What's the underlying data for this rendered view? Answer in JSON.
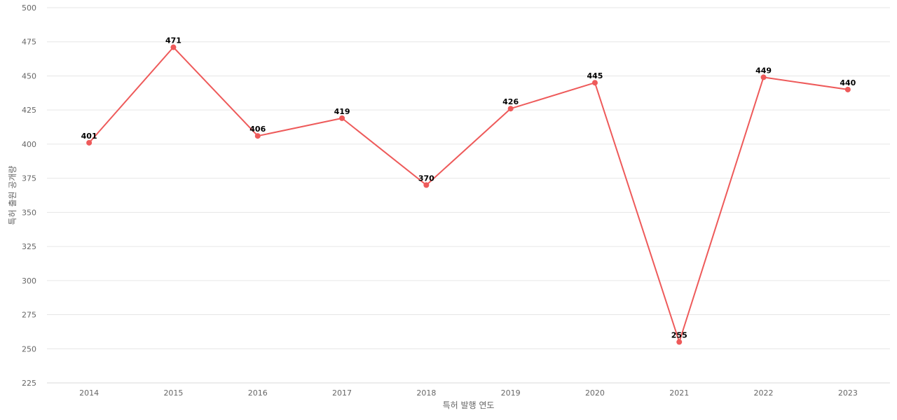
{
  "chart_data": {
    "type": "line",
    "title": "",
    "xlabel": "특허 발행 연도",
    "ylabel": "특허 출원 공개량",
    "x": [
      "2014",
      "2015",
      "2016",
      "2017",
      "2018",
      "2019",
      "2020",
      "2021",
      "2022",
      "2023"
    ],
    "series": [
      {
        "values": [
          401,
          471,
          406,
          419,
          370,
          426,
          445,
          255,
          449,
          440
        ],
        "color": "#ee5a5a"
      }
    ],
    "yticks": [
      225,
      250,
      275,
      300,
      325,
      350,
      375,
      400,
      425,
      450,
      475,
      500
    ],
    "ylim": [
      225,
      500
    ],
    "grid": true,
    "data_labels": true,
    "legend": "none"
  }
}
